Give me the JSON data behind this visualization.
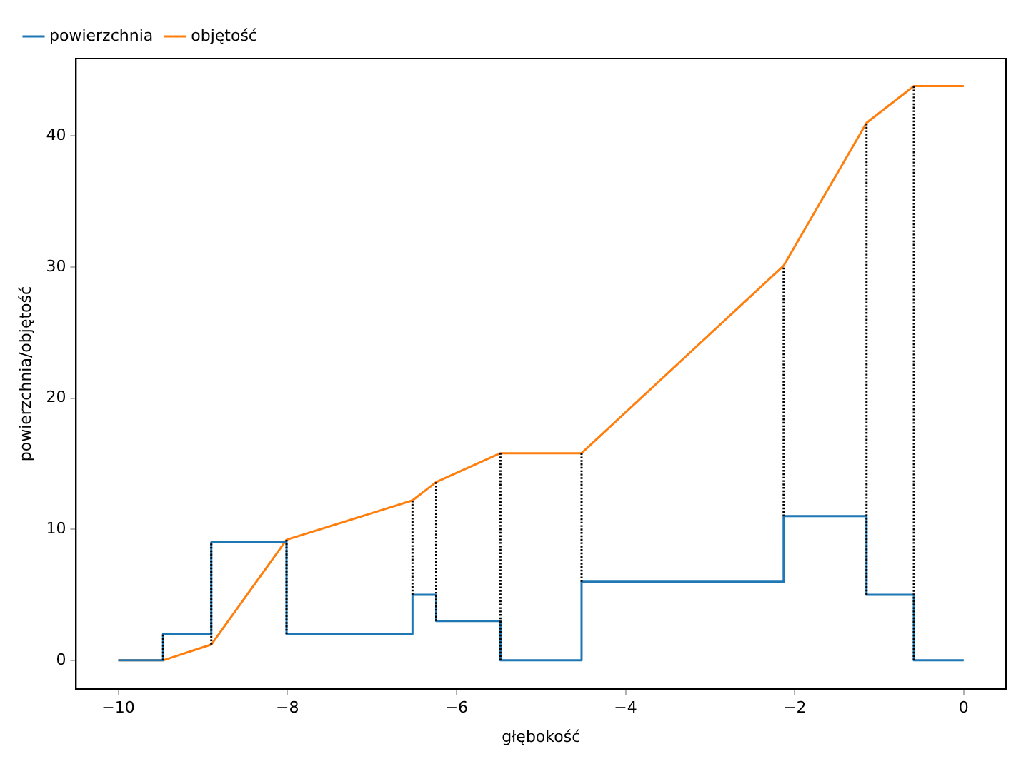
{
  "chart_data": {
    "type": "line",
    "xlabel": "głębokość",
    "ylabel": "powierzchnia/objętość",
    "xlim": [
      -10.5,
      0.5
    ],
    "ylim": [
      -2.2,
      45.9
    ],
    "xticks": [
      -10,
      -8,
      -6,
      -4,
      -2,
      0
    ],
    "yticks": [
      0,
      10,
      20,
      30,
      40
    ],
    "grid": false,
    "legend": "top left",
    "series": [
      {
        "name": "powierzchnia",
        "type": "step",
        "color": "#1f77b4",
        "x": [
          -10,
          -9.47,
          -8.9,
          -8.01,
          -6.52,
          -6.24,
          -5.48,
          -4.52,
          -2.13,
          -1.15,
          -0.59,
          0
        ],
        "values": [
          0,
          2,
          9,
          2,
          5,
          3,
          0,
          6,
          11,
          5,
          0,
          0
        ]
      },
      {
        "name": "objętość",
        "type": "line",
        "color": "#ff7f0e",
        "x": [
          -10,
          -9.47,
          -8.9,
          -8.01,
          -6.52,
          -6.24,
          -5.48,
          -4.52,
          -2.13,
          -1.15,
          -0.59,
          0
        ],
        "values": [
          0,
          0,
          1.2,
          9.2,
          12.2,
          13.6,
          15.8,
          15.8,
          30.1,
          41,
          43.8,
          43.8
        ]
      },
      {
        "type": "line",
        "line_style": "dotted",
        "color": "#000000",
        "x": [
          -9.47,
          -9.47
        ],
        "values": [
          0,
          2
        ]
      },
      {
        "type": "line",
        "line_style": "dotted",
        "color": "#000000",
        "x": [
          -8.9,
          -8.9
        ],
        "values": [
          1.2,
          9
        ]
      },
      {
        "type": "line",
        "line_style": "dotted",
        "color": "#000000",
        "x": [
          -8.01,
          -8.01
        ],
        "values": [
          2,
          9.2
        ]
      },
      {
        "type": "line",
        "line_style": "dotted",
        "color": "#000000",
        "x": [
          -6.52,
          -6.52
        ],
        "values": [
          5,
          12.2
        ]
      },
      {
        "type": "line",
        "line_style": "dotted",
        "color": "#000000",
        "x": [
          -6.24,
          -6.24
        ],
        "values": [
          3,
          13.6
        ]
      },
      {
        "type": "line",
        "line_style": "dotted",
        "color": "#000000",
        "x": [
          -5.48,
          -5.48
        ],
        "values": [
          0,
          15.8
        ]
      },
      {
        "type": "line",
        "line_style": "dotted",
        "color": "#000000",
        "x": [
          -4.52,
          -4.52
        ],
        "values": [
          6,
          15.8
        ]
      },
      {
        "type": "line",
        "line_style": "dotted",
        "color": "#000000",
        "x": [
          -2.13,
          -2.13
        ],
        "values": [
          11,
          30.1
        ]
      },
      {
        "type": "line",
        "line_style": "dotted",
        "color": "#000000",
        "x": [
          -1.15,
          -1.15
        ],
        "values": [
          5,
          41
        ]
      },
      {
        "type": "line",
        "line_style": "dotted",
        "color": "#000000",
        "x": [
          -0.59,
          -0.59
        ],
        "values": [
          0,
          43.8
        ]
      }
    ]
  }
}
